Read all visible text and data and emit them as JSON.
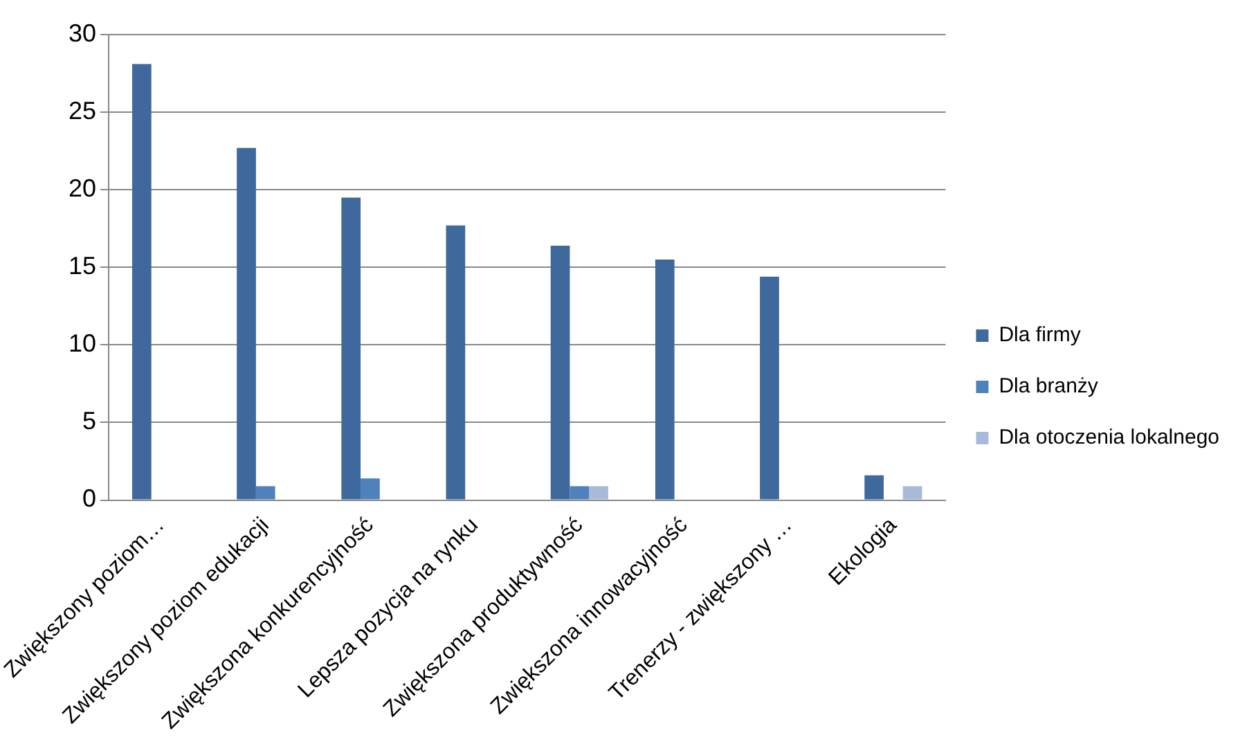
{
  "chart_data": {
    "type": "bar",
    "categories": [
      "Zwiększony poziom…",
      "Zwiększony poziom edukacji",
      "Zwiększona konkurencyjność",
      "Lepsza pozycja na rynku",
      "Zwiększona produktywność",
      "Zwiększona innowacyjność",
      "Trenerzy - zwiększony …",
      "Ekologia"
    ],
    "series": [
      {
        "name": "Dla firmy",
        "color": "#3f689c",
        "values": [
          28.1,
          22.7,
          19.5,
          17.7,
          16.4,
          15.5,
          14.4,
          1.6
        ]
      },
      {
        "name": "Dla branży",
        "color": "#4f81bd",
        "values": [
          null,
          0.9,
          1.4,
          null,
          0.9,
          null,
          null,
          null
        ]
      },
      {
        "name": "Dla otoczenia lokalnego",
        "color": "#a8bad9",
        "values": [
          null,
          null,
          null,
          null,
          0.9,
          null,
          null,
          0.9
        ]
      }
    ],
    "ylim": [
      0,
      30
    ],
    "yticks": [
      0,
      5,
      10,
      15,
      20,
      25,
      30
    ],
    "grid": "y",
    "legend": "right"
  }
}
